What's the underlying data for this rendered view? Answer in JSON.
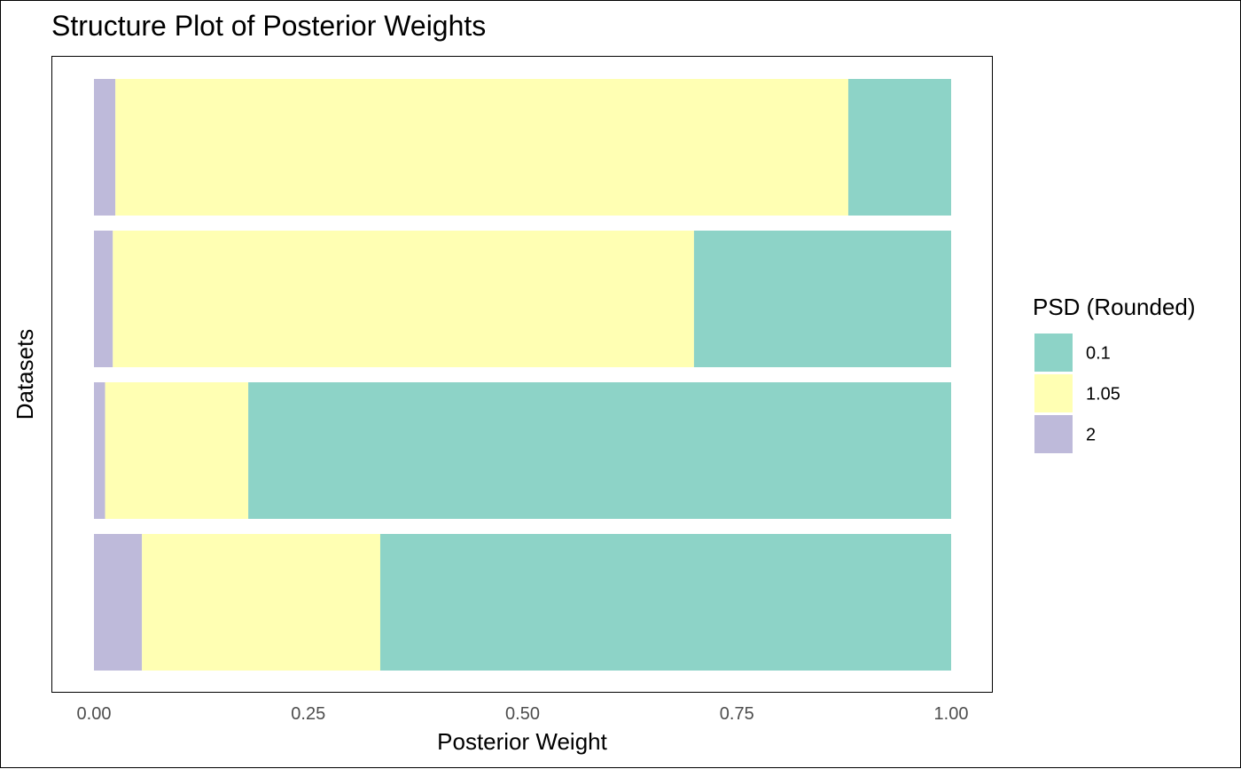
{
  "chart_data": {
    "type": "bar",
    "orientation": "horizontal",
    "stacked": true,
    "title": "Structure Plot of Posterior Weights",
    "xlabel": "Posterior Weight",
    "ylabel": "Datasets",
    "xlim": [
      0,
      1
    ],
    "x_ticks": [
      "0.00",
      "0.25",
      "0.50",
      "0.75",
      "1.00"
    ],
    "x_tick_values": [
      0,
      0.25,
      0.5,
      0.75,
      1.0
    ],
    "grid": false,
    "legend": {
      "title": "PSD (Rounded)",
      "position": "right",
      "entries": [
        "0.1",
        "1.05",
        "2"
      ]
    },
    "colors": {
      "0.1": "#8dd3c7",
      "1.05": "#ffffb3",
      "2": "#bebada"
    },
    "stack_order": [
      "2",
      "1.05",
      "0.1"
    ],
    "datasets": [
      {
        "weights": {
          "2": 0.025,
          "1.05": 0.855,
          "0.1": 0.12
        }
      },
      {
        "weights": {
          "2": 0.022,
          "1.05": 0.678,
          "0.1": 0.3
        }
      },
      {
        "weights": {
          "2": 0.013,
          "1.05": 0.167,
          "0.1": 0.82
        }
      },
      {
        "weights": {
          "2": 0.056,
          "1.05": 0.278,
          "0.1": 0.666
        }
      }
    ]
  }
}
